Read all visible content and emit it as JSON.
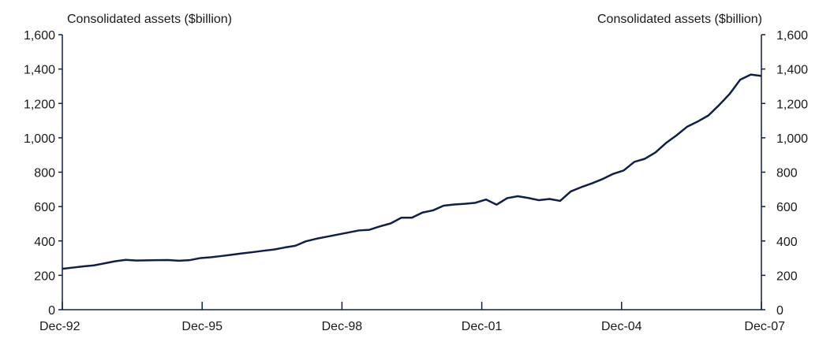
{
  "chart_data": {
    "type": "line",
    "ylabel_left": "Consolidated assets ($billion)",
    "ylabel_right": "Consolidated assets ($billion)",
    "ylim": [
      0,
      1600
    ],
    "yticks": [
      0,
      200,
      400,
      600,
      800,
      1000,
      1200,
      1400,
      1600
    ],
    "ytick_labels": [
      "0",
      "200",
      "400",
      "600",
      "800",
      "1,000",
      "1,200",
      "1,400",
      "1,600"
    ],
    "xlim": [
      "Dec-92",
      "Dec-07"
    ],
    "xticks": [
      "Dec-92",
      "Dec-95",
      "Dec-98",
      "Dec-01",
      "Dec-04",
      "Dec-07"
    ],
    "grid": false,
    "line_color": "#0f1f45",
    "series": [
      {
        "values": [
          238,
          245,
          252,
          258,
          270,
          282,
          290,
          286,
          287,
          288,
          289,
          285,
          288,
          300,
          305,
          312,
          320,
          328,
          335,
          343,
          350,
          362,
          372,
          398,
          413,
          425,
          437,
          449,
          461,
          465,
          485,
          502,
          535,
          535,
          565,
          578,
          605,
          612,
          616,
          622,
          641,
          611,
          649,
          660,
          650,
          637,
          644,
          633,
          688,
          713,
          735,
          760,
          790,
          810,
          860,
          878,
          915,
          970,
          1015,
          1065,
          1095,
          1130,
          1190,
          1255,
          1338,
          1368,
          1360
        ]
      }
    ]
  }
}
